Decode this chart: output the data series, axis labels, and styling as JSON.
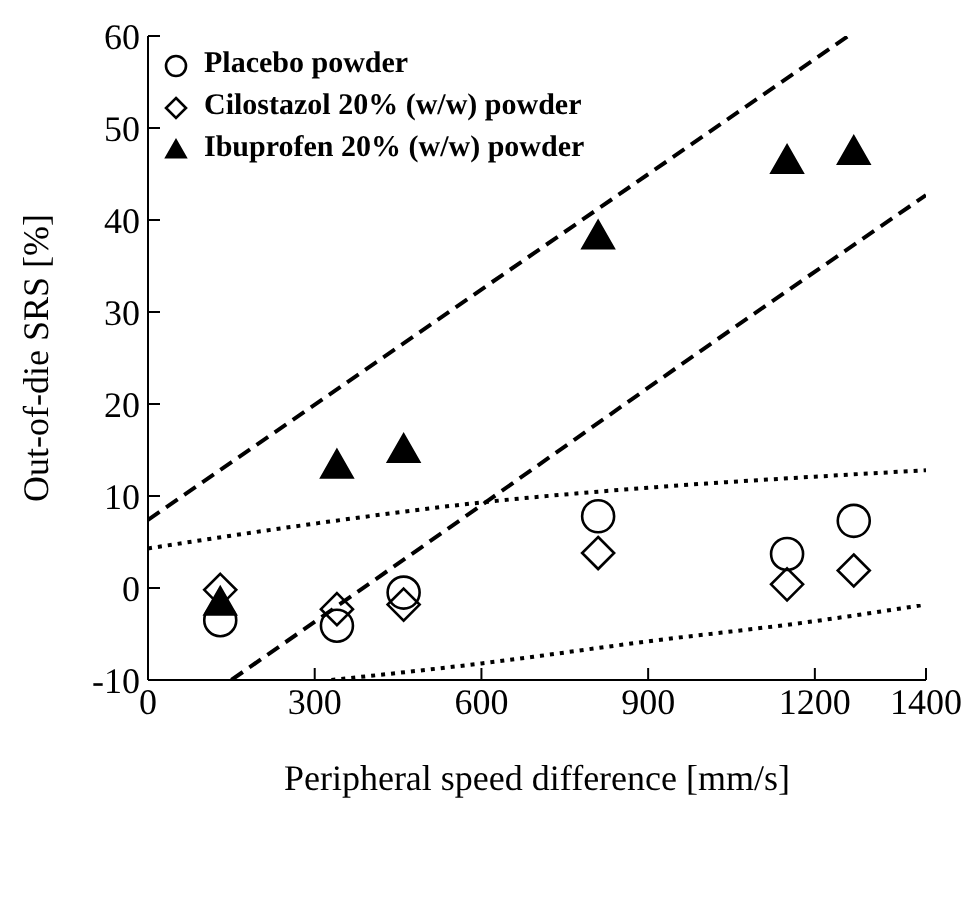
{
  "chart_data": {
    "type": "scatter",
    "xlabel": "Peripheral speed difference [mm/s]",
    "ylabel": "Out-of-die SRS [%]",
    "xlim": [
      0,
      1400
    ],
    "xticks": [
      0,
      300,
      600,
      900,
      1200,
      1400
    ],
    "ylim": [
      -10,
      60
    ],
    "yticks": [
      -10,
      0,
      10,
      20,
      30,
      40,
      50,
      60
    ],
    "grid": false,
    "legend": "top left",
    "series": [
      {
        "name": "Placebo powder",
        "marker": "circle",
        "color": "#000000",
        "x": [
          130,
          340,
          460,
          810,
          1150,
          1270
        ],
        "values": [
          -3.5,
          -4.1,
          -0.5,
          7.8,
          3.7,
          7.3
        ]
      },
      {
        "name": "Cilostazol 20% (w/w) powder",
        "marker": "diamond",
        "color": "#000000",
        "x": [
          130,
          340,
          460,
          810,
          1150,
          1270
        ],
        "values": [
          -0.2,
          -2.3,
          -1.8,
          3.8,
          0.4,
          1.9
        ]
      },
      {
        "name": "Ibuprofen 20% (w/w) powder",
        "marker": "triangle",
        "color": "#000000",
        "x": [
          130,
          340,
          460,
          810,
          1150,
          1270
        ],
        "values": [
          -1.6,
          13.3,
          15,
          38.2,
          46.4,
          47.4
        ]
      },
      {
        "type": "line",
        "line_style": "dashed",
        "color": "#000000",
        "x": [
          0,
          1260
        ],
        "values": [
          7.4,
          60
        ]
      },
      {
        "type": "line",
        "line_style": "dashed",
        "color": "#000000",
        "x": [
          150,
          600,
          1000,
          1400
        ],
        "values": [
          -10,
          9,
          26,
          42.7
        ]
      },
      {
        "type": "line",
        "line_style": "dotted",
        "color": "#000000",
        "x": [
          0,
          300,
          600,
          900,
          1200,
          1400
        ],
        "values": [
          4.3,
          7,
          9.3,
          10.9,
          12.1,
          12.8
        ]
      },
      {
        "type": "line",
        "line_style": "dotted",
        "color": "#000000",
        "x": [
          330,
          600,
          900,
          1200,
          1400
        ],
        "values": [
          -10,
          -8.2,
          -5.8,
          -3.6,
          -1.8
        ]
      }
    ]
  }
}
